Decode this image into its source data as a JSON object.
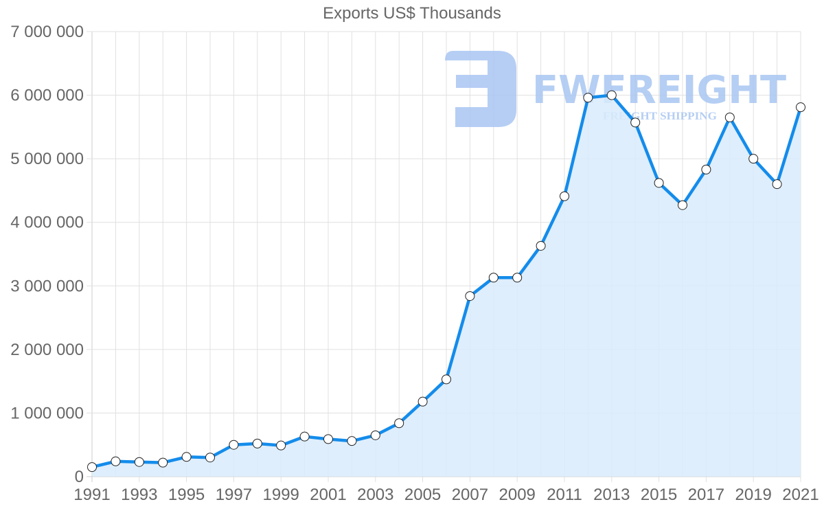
{
  "chart_data": {
    "type": "area",
    "title": "Exports US$ Thousands",
    "xlabel": "",
    "ylabel": "",
    "x": [
      1991,
      1992,
      1993,
      1994,
      1995,
      1996,
      1997,
      1998,
      1999,
      2000,
      2001,
      2002,
      2003,
      2004,
      2005,
      2006,
      2007,
      2008,
      2009,
      2010,
      2011,
      2012,
      2013,
      2014,
      2015,
      2016,
      2017,
      2018,
      2019,
      2020,
      2021
    ],
    "series": [
      {
        "name": "Exports US$ Thousands",
        "values": [
          150000,
          240000,
          230000,
          220000,
          310000,
          300000,
          500000,
          520000,
          490000,
          630000,
          590000,
          560000,
          650000,
          840000,
          1180000,
          1530000,
          2840000,
          3130000,
          3130000,
          3630000,
          4410000,
          5960000,
          6000000,
          5570000,
          4620000,
          4270000,
          4830000,
          5650000,
          5000000,
          4600000,
          5810000
        ]
      }
    ],
    "x_tick_labels": [
      "1991",
      "1993",
      "1995",
      "1997",
      "1999",
      "2001",
      "2003",
      "2005",
      "2007",
      "2009",
      "2011",
      "2013",
      "2015",
      "2017",
      "2019",
      "2021"
    ],
    "y_tick_labels": [
      "0",
      "1 000 000",
      "2 000 000",
      "3 000 000",
      "4 000 000",
      "5 000 000",
      "6 000 000",
      "7 000 000"
    ],
    "ylim": [
      0,
      7000000
    ],
    "xlim": [
      1991,
      2021
    ],
    "grid": true,
    "legend": "none",
    "colors": {
      "line": "#148ceb",
      "fill": "#d8ebfb",
      "point_fill": "#ffffff",
      "point_stroke": "#222222",
      "grid": "#e0e0e0"
    }
  },
  "watermark": {
    "brand": "FWFREIGHT",
    "tagline": "FREIGHT SHIPPING",
    "color": "#a9c6f2"
  }
}
